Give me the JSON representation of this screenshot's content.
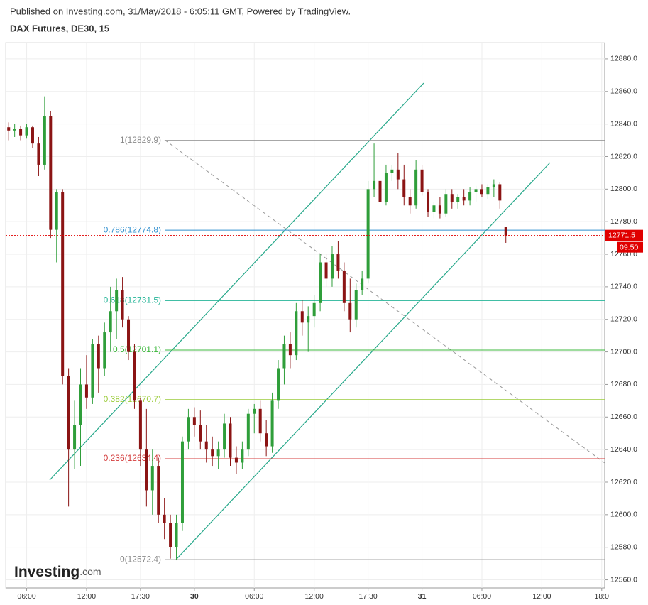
{
  "header": {
    "published": "Published on Investing.com, 31/May/2018 - 6:05:11 GMT, Powered by TradingView.",
    "logo_main": "Investing",
    "logo_suffix": ".com"
  },
  "chart_data": {
    "type": "candlestick",
    "title": "DAX Futures, DE30, 15",
    "up_color": "#2f9e3a",
    "down_color": "#8b1414",
    "grid": true,
    "categories": [
      null,
      null,
      null,
      "06:00",
      null,
      null,
      null,
      null,
      null,
      null,
      null,
      null,
      null,
      "12:00",
      null,
      null,
      null,
      null,
      null,
      null,
      null,
      null,
      "17:30",
      null,
      null,
      null,
      null,
      null,
      null,
      null,
      null,
      "30",
      null,
      null,
      null,
      null,
      null,
      null,
      null,
      null,
      null,
      "06:00",
      null,
      null,
      null,
      null,
      null,
      null,
      null,
      null,
      null,
      "12:00",
      null,
      null,
      null,
      null,
      null,
      null,
      null,
      null,
      "17:30",
      null,
      null,
      null,
      null,
      null,
      null,
      null,
      null,
      "31",
      null,
      null,
      null,
      null,
      null,
      null,
      null,
      null,
      null,
      "06:00",
      null,
      null,
      null,
      null,
      null,
      null,
      null,
      null,
      null,
      "12:00",
      null,
      null,
      null,
      null,
      null,
      null,
      null,
      null,
      null,
      "18:0"
    ],
    "ohlc": [
      [
        12838,
        12841,
        12830,
        12836
      ],
      [
        12836,
        12840,
        12832,
        12837
      ],
      [
        12837,
        12839,
        12830,
        12833
      ],
      [
        12833,
        12840,
        12831,
        12838
      ],
      [
        12838,
        12839,
        12825,
        12828
      ],
      [
        12828,
        12832,
        12808,
        12815
      ],
      [
        12815,
        12857,
        12812,
        12845
      ],
      [
        12845,
        12848,
        12770,
        12775
      ],
      [
        12775,
        12800,
        12755,
        12798
      ],
      [
        12798,
        12800,
        12680,
        12685
      ],
      [
        12685,
        12690,
        12605,
        12640
      ],
      [
        12640,
        12670,
        12628,
        12655
      ],
      [
        12655,
        12690,
        12630,
        12680
      ],
      [
        12680,
        12698,
        12665,
        12672
      ],
      [
        12672,
        12708,
        12668,
        12705
      ],
      [
        12705,
        12710,
        12675,
        12690
      ],
      [
        12690,
        12718,
        12685,
        12712
      ],
      [
        12712,
        12740,
        12700,
        12725
      ],
      [
        12725,
        12745,
        12708,
        12738
      ],
      [
        12738,
        12746,
        12715,
        12720
      ],
      [
        12720,
        12722,
        12695,
        12700
      ],
      [
        12700,
        12705,
        12665,
        12670
      ],
      [
        12670,
        12672,
        12630,
        12640
      ],
      [
        12640,
        12665,
        12605,
        12615
      ],
      [
        12615,
        12640,
        12600,
        12630
      ],
      [
        12630,
        12635,
        12595,
        12600
      ],
      [
        12600,
        12610,
        12585,
        12595
      ],
      [
        12595,
        12600,
        12573,
        12580
      ],
      [
        12580,
        12600,
        12572,
        12595
      ],
      [
        12595,
        12648,
        12590,
        12645
      ],
      [
        12645,
        12665,
        12640,
        12660
      ],
      [
        12660,
        12666,
        12648,
        12655
      ],
      [
        12655,
        12664,
        12640,
        12645
      ],
      [
        12645,
        12655,
        12632,
        12640
      ],
      [
        12640,
        12648,
        12630,
        12636
      ],
      [
        12636,
        12645,
        12628,
        12640
      ],
      [
        12640,
        12662,
        12635,
        12656
      ],
      [
        12656,
        12660,
        12630,
        12635
      ],
      [
        12635,
        12642,
        12625,
        12632
      ],
      [
        12632,
        12645,
        12628,
        12640
      ],
      [
        12640,
        12665,
        12636,
        12662
      ],
      [
        12662,
        12668,
        12650,
        12665
      ],
      [
        12665,
        12670,
        12645,
        12650
      ],
      [
        12650,
        12658,
        12636,
        12642
      ],
      [
        12642,
        12675,
        12638,
        12670
      ],
      [
        12670,
        12695,
        12665,
        12690
      ],
      [
        12690,
        12710,
        12680,
        12705
      ],
      [
        12705,
        12712,
        12690,
        12698
      ],
      [
        12698,
        12730,
        12695,
        12725
      ],
      [
        12725,
        12732,
        12710,
        12718
      ],
      [
        12718,
        12728,
        12700,
        12722
      ],
      [
        12722,
        12735,
        12715,
        12730
      ],
      [
        12730,
        12760,
        12725,
        12755
      ],
      [
        12755,
        12760,
        12740,
        12745
      ],
      [
        12745,
        12765,
        12740,
        12760
      ],
      [
        12760,
        12768,
        12745,
        12750
      ],
      [
        12750,
        12755,
        12725,
        12730
      ],
      [
        12730,
        12745,
        12712,
        12720
      ],
      [
        12720,
        12742,
        12715,
        12738
      ],
      [
        12738,
        12750,
        12735,
        12745
      ],
      [
        12745,
        12805,
        12742,
        12800
      ],
      [
        12800,
        12828,
        12795,
        12805
      ],
      [
        12805,
        12815,
        12788,
        12792
      ],
      [
        12792,
        12815,
        12790,
        12810
      ],
      [
        12810,
        12815,
        12805,
        12812
      ],
      [
        12812,
        12822,
        12800,
        12806
      ],
      [
        12806,
        12815,
        12790,
        12795
      ],
      [
        12795,
        12800,
        12785,
        12790
      ],
      [
        12790,
        12818,
        12788,
        12812
      ],
      [
        12812,
        12815,
        12796,
        12798
      ],
      [
        12798,
        12800,
        12783,
        12786
      ],
      [
        12786,
        12792,
        12782,
        12790
      ],
      [
        12790,
        12795,
        12782,
        12785
      ],
      [
        12785,
        12800,
        12783,
        12797
      ],
      [
        12797,
        12800,
        12788,
        12792
      ],
      [
        12792,
        12797,
        12788,
        12795
      ],
      [
        12795,
        12800,
        12790,
        12793
      ],
      [
        12793,
        12801,
        12790,
        12798
      ],
      [
        12798,
        12802,
        12792,
        12800
      ],
      [
        12800,
        12803,
        12795,
        12797
      ],
      [
        12797,
        12803,
        12794,
        12801
      ],
      [
        12801,
        12806,
        12795,
        12803
      ],
      [
        12803,
        12804,
        12788,
        12793
      ],
      [
        12777,
        12777,
        12767,
        12771.5
      ],
      null,
      null,
      null,
      null,
      null,
      null,
      null,
      null,
      null,
      null,
      null,
      null,
      null,
      null,
      null,
      null
    ],
    "ylim": [
      12555,
      12890
    ],
    "yticks": [
      {
        "value": 12560,
        "label": "12560.0"
      },
      {
        "value": 12580,
        "label": "12580.0"
      },
      {
        "value": 12600,
        "label": "12600.0"
      },
      {
        "value": 12620,
        "label": "12620.0"
      },
      {
        "value": 12640,
        "label": "12640.0"
      },
      {
        "value": 12660,
        "label": "12660.0"
      },
      {
        "value": 12680,
        "label": "12680.0"
      },
      {
        "value": 12700,
        "label": "12700.0"
      },
      {
        "value": 12720,
        "label": "12720.0"
      },
      {
        "value": 12740,
        "label": "12740.0"
      },
      {
        "value": 12760,
        "label": "12760.0"
      },
      {
        "value": 12780,
        "label": "12780.0"
      },
      {
        "value": 12800,
        "label": "12800.0"
      },
      {
        "value": 12820,
        "label": "12820.0"
      },
      {
        "value": 12840,
        "label": "12840.0"
      },
      {
        "value": 12860,
        "label": "12860.0"
      },
      {
        "value": 12880,
        "label": "12880.0"
      }
    ],
    "fib_levels": [
      {
        "label": "1(12829.9)",
        "value": 12829.9,
        "color": "#8a8a8a"
      },
      {
        "label": "0.786(12774.8)",
        "value": 12774.8,
        "color": "#2f8fcf"
      },
      {
        "label": "0.618(12731.5)",
        "value": 12731.5,
        "color": "#26b598"
      },
      {
        "label": "0.5(12701.1)",
        "value": 12701.1,
        "color": "#3cb83c"
      },
      {
        "label": "0.382(12670.7)",
        "value": 12670.7,
        "color": "#9ccc3c"
      },
      {
        "label": "0.236(12634.4)",
        "value": 12634.4,
        "color": "#d43c3c"
      },
      {
        "label": "0(12572.4)",
        "value": 12572.4,
        "color": "#8a8a8a"
      }
    ],
    "last_price": 12771.5,
    "countdown": "09:50",
    "last_color": "#e00000"
  }
}
